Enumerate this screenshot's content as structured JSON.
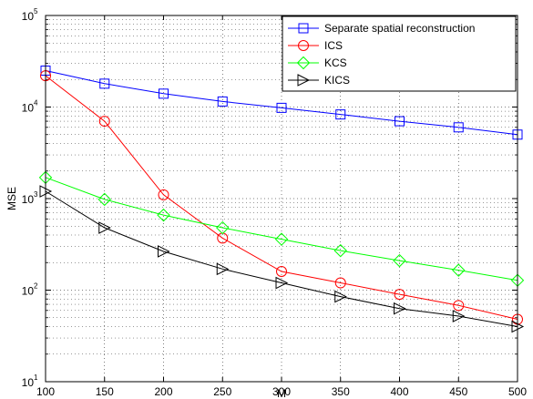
{
  "chart_data": {
    "type": "line",
    "xlabel": "M",
    "ylabel": "MSE",
    "title": "",
    "xlim": [
      100,
      500
    ],
    "ylim": [
      10,
      100000
    ],
    "yscale": "log",
    "grid": true,
    "legend_position": "top-right",
    "x": [
      100,
      150,
      200,
      250,
      300,
      350,
      400,
      450,
      500
    ],
    "x_tick_labels": [
      "100",
      "150",
      "200",
      "250",
      "300",
      "350",
      "400",
      "450",
      "500"
    ],
    "y_tick_labels": [
      {
        "base": "10",
        "exp": "1"
      },
      {
        "base": "10",
        "exp": "2"
      },
      {
        "base": "10",
        "exp": "3"
      },
      {
        "base": "10",
        "exp": "4"
      },
      {
        "base": "10",
        "exp": "5"
      }
    ],
    "series": [
      {
        "name": "Separate spatial reconstruction",
        "color": "#0000ff",
        "marker": "square",
        "values": [
          25000,
          18000,
          14000,
          11500,
          9800,
          8300,
          7000,
          6000,
          5000
        ]
      },
      {
        "name": "ICS",
        "color": "#ff0000",
        "marker": "circle",
        "values": [
          22000,
          7000,
          1100,
          370,
          160,
          120,
          90,
          68,
          48
        ]
      },
      {
        "name": "KCS",
        "color": "#00ff00",
        "marker": "diamond",
        "values": [
          1700,
          980,
          660,
          480,
          360,
          270,
          210,
          165,
          128
        ]
      },
      {
        "name": "KICS",
        "color": "#000000",
        "marker": "triangle-right",
        "values": [
          1200,
          480,
          265,
          170,
          120,
          85,
          63,
          52,
          40
        ]
      }
    ]
  }
}
